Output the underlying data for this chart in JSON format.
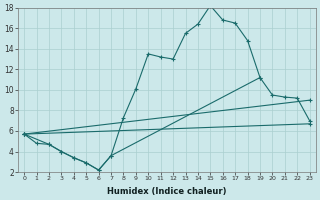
{
  "xlabel": "Humidex (Indice chaleur)",
  "bg_color": "#cce8ea",
  "grid_color": "#aacfcf",
  "line_color": "#1a6b6b",
  "xlim": [
    -0.5,
    23.5
  ],
  "ylim": [
    2,
    18
  ],
  "xticks": [
    0,
    1,
    2,
    3,
    4,
    5,
    6,
    7,
    8,
    9,
    10,
    11,
    12,
    13,
    14,
    15,
    16,
    17,
    18,
    19,
    20,
    21,
    22,
    23
  ],
  "yticks": [
    2,
    4,
    6,
    8,
    10,
    12,
    14,
    16,
    18
  ],
  "line1": {
    "x": [
      0,
      1,
      2,
      3,
      4,
      5,
      6,
      7,
      8,
      9,
      10,
      11,
      12,
      13,
      14,
      15,
      16,
      17,
      18,
      19
    ],
    "y": [
      5.7,
      4.8,
      4.7,
      4.0,
      3.4,
      2.9,
      2.2,
      3.6,
      7.3,
      10.1,
      13.5,
      13.2,
      13.0,
      15.5,
      16.4,
      18.2,
      16.8,
      16.5,
      14.8,
      11.2
    ]
  },
  "line2": {
    "x": [
      0,
      2,
      3,
      4,
      5,
      6,
      7,
      19,
      20,
      21,
      22,
      23
    ],
    "y": [
      5.7,
      4.7,
      4.0,
      3.4,
      2.9,
      2.2,
      3.6,
      11.2,
      9.5,
      9.3,
      9.2,
      7.0
    ]
  },
  "line3": {
    "x": [
      0,
      23
    ],
    "y": [
      5.7,
      9.0
    ]
  },
  "line4": {
    "x": [
      0,
      23
    ],
    "y": [
      5.7,
      6.7
    ]
  }
}
